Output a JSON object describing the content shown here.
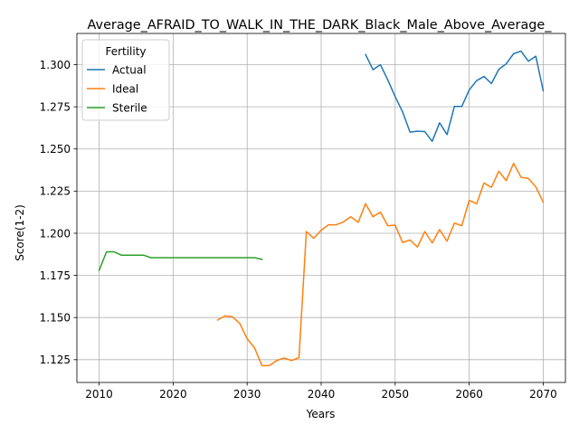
{
  "chart_data": {
    "type": "line",
    "title": "Average_AFRAID_TO_WALK_IN_THE_DARK_Black_Male_Above_Average_",
    "xlabel": "Years",
    "ylabel": "Score(1-2)",
    "xlim": [
      2007,
      2073
    ],
    "ylim": [
      1.1115,
      1.3185
    ],
    "x_ticks": [
      2010,
      2020,
      2030,
      2040,
      2050,
      2060,
      2070
    ],
    "y_ticks": [
      1.125,
      1.15,
      1.175,
      1.2,
      1.225,
      1.25,
      1.275,
      1.3
    ],
    "x_tick_labels": [
      "2010",
      "2020",
      "2030",
      "2040",
      "2050",
      "2060",
      "2070"
    ],
    "y_tick_labels": [
      "1.125",
      "1.150",
      "1.175",
      "1.200",
      "1.225",
      "1.250",
      "1.275",
      "1.300"
    ],
    "grid": true,
    "legend": {
      "title": "Fertility",
      "placement": "top-left"
    },
    "series": [
      {
        "name": "Actual",
        "color": "#1f77b4",
        "x": [
          2046,
          2047,
          2048,
          2049,
          2050,
          2051,
          2052,
          2053,
          2054,
          2055,
          2056,
          2057,
          2058,
          2059,
          2060,
          2061,
          2062,
          2063,
          2064,
          2065,
          2066,
          2067,
          2068,
          2069,
          2070
        ],
        "values": [
          1.306,
          1.297,
          1.3,
          1.291,
          1.281,
          1.272,
          1.26,
          1.2605,
          1.2603,
          1.2545,
          1.2655,
          1.2585,
          1.2752,
          1.2752,
          1.285,
          1.2905,
          1.293,
          1.2888,
          1.2972,
          1.3005,
          1.3065,
          1.308,
          1.302,
          1.305,
          1.2845
        ]
      },
      {
        "name": "Ideal",
        "color": "#ff7f0e",
        "x": [
          2026,
          2027,
          2028,
          2029,
          2030,
          2031,
          2032,
          2033,
          2034,
          2035,
          2036,
          2037,
          2038,
          2039,
          2040,
          2041,
          2042,
          2043,
          2044,
          2045,
          2046,
          2047,
          2048,
          2049,
          2050,
          2051,
          2052,
          2053,
          2054,
          2055,
          2056,
          2057,
          2058,
          2059,
          2060,
          2061,
          2062,
          2063,
          2064,
          2065,
          2066,
          2067,
          2068,
          2069,
          2070
        ],
        "values": [
          1.1485,
          1.151,
          1.1505,
          1.1465,
          1.1375,
          1.132,
          1.1215,
          1.1215,
          1.1245,
          1.126,
          1.1245,
          1.1262,
          1.201,
          1.197,
          1.2018,
          1.205,
          1.205,
          1.2067,
          1.2098,
          1.2065,
          1.2175,
          1.2098,
          1.2125,
          1.2045,
          1.2048,
          1.1945,
          1.196,
          1.1918,
          1.201,
          1.1943,
          1.2022,
          1.1953,
          1.206,
          1.2045,
          1.2195,
          1.2175,
          1.2298,
          1.2272,
          1.2368,
          1.2312,
          1.2415,
          1.2332,
          1.2325,
          1.2275,
          1.2185
        ]
      },
      {
        "name": "Sterile",
        "color": "#2ca02c",
        "x": [
          2010,
          2011,
          2012,
          2013,
          2014,
          2015,
          2016,
          2017,
          2018,
          2019,
          2020,
          2021,
          2022,
          2023,
          2024,
          2025,
          2026,
          2027,
          2028,
          2029,
          2030,
          2031,
          2032
        ],
        "values": [
          1.178,
          1.189,
          1.189,
          1.187,
          1.187,
          1.187,
          1.187,
          1.1855,
          1.1855,
          1.1855,
          1.1855,
          1.1855,
          1.1855,
          1.1855,
          1.1855,
          1.1855,
          1.1855,
          1.1855,
          1.1855,
          1.1855,
          1.1855,
          1.1855,
          1.1845
        ]
      }
    ]
  }
}
